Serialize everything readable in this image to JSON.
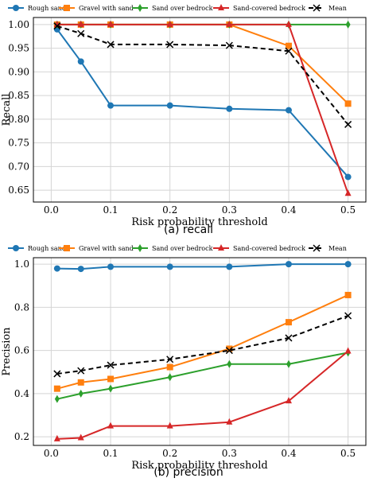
{
  "captions": {
    "a": "(a)  recall",
    "b": "(b)  precision"
  },
  "colors": {
    "Rough sand": "#1f77b4",
    "Gravel with sand": "#ff7f0e",
    "Sand over bedrock": "#2ca02c",
    "Sand-covered bedrock": "#d62728",
    "Mean": "#000000"
  },
  "chart_data": [
    {
      "type": "line",
      "title": "",
      "xlabel": "Risk probability threshold",
      "ylabel": "Recall",
      "x": [
        0.01,
        0.05,
        0.1,
        0.2,
        0.3,
        0.4,
        0.5
      ],
      "xlim": [
        -0.03,
        0.53
      ],
      "ylim": [
        0.625,
        1.015
      ],
      "xticks": [
        0.0,
        0.1,
        0.2,
        0.3,
        0.4,
        0.5
      ],
      "xtick_labels": [
        "0.0",
        "0.1",
        "0.2",
        "0.3",
        "0.4",
        "0.5"
      ],
      "yticks": [
        0.65,
        0.7,
        0.75,
        0.8,
        0.85,
        0.9,
        0.95,
        1.0
      ],
      "ytick_labels": [
        "0.65",
        "0.70",
        "0.75",
        "0.80",
        "0.85",
        "0.90",
        "0.95",
        "1.00"
      ],
      "grid": true,
      "legend_position": "top",
      "series": [
        {
          "name": "Rough sand",
          "marker": "circle",
          "values": [
            0.99,
            0.922,
            0.829,
            0.829,
            0.822,
            0.819,
            0.678
          ]
        },
        {
          "name": "Gravel with sand",
          "marker": "square",
          "values": [
            1.0,
            1.0,
            1.0,
            1.0,
            1.0,
            0.955,
            0.833
          ]
        },
        {
          "name": "Sand over bedrock",
          "marker": "diamond",
          "values": [
            1.0,
            1.0,
            1.0,
            1.0,
            1.0,
            1.0,
            1.0
          ]
        },
        {
          "name": "Sand-covered bedrock",
          "marker": "triangle",
          "values": [
            1.0,
            1.0,
            1.0,
            1.0,
            1.0,
            1.0,
            0.643
          ]
        },
        {
          "name": "Mean",
          "marker": "x",
          "dashed": true,
          "values": [
            0.997,
            0.981,
            0.958,
            0.958,
            0.956,
            0.944,
            0.789
          ]
        }
      ]
    },
    {
      "type": "line",
      "title": "",
      "xlabel": "Risk probability threshold",
      "ylabel": "Precision",
      "x": [
        0.01,
        0.05,
        0.1,
        0.2,
        0.3,
        0.4,
        0.5
      ],
      "xlim": [
        -0.03,
        0.53
      ],
      "ylim": [
        0.16,
        1.03
      ],
      "xticks": [
        0.0,
        0.1,
        0.2,
        0.3,
        0.4,
        0.5
      ],
      "xtick_labels": [
        "0.0",
        "0.1",
        "0.2",
        "0.3",
        "0.4",
        "0.5"
      ],
      "yticks": [
        0.2,
        0.4,
        0.6,
        0.8,
        1.0
      ],
      "ytick_labels": [
        "0.2",
        "0.4",
        "0.6",
        "0.8",
        "1.0"
      ],
      "grid": true,
      "legend_position": "top",
      "series": [
        {
          "name": "Rough sand",
          "marker": "circle",
          "values": [
            0.98,
            0.978,
            0.988,
            0.988,
            0.988,
            1.0,
            1.0
          ]
        },
        {
          "name": "Gravel with sand",
          "marker": "square",
          "values": [
            0.423,
            0.452,
            0.468,
            0.523,
            0.608,
            0.731,
            0.857
          ]
        },
        {
          "name": "Sand over bedrock",
          "marker": "diamond",
          "values": [
            0.375,
            0.4,
            0.423,
            0.476,
            0.537,
            0.537,
            0.59
          ]
        },
        {
          "name": "Sand-covered bedrock",
          "marker": "triangle",
          "values": [
            0.19,
            0.195,
            0.25,
            0.25,
            0.268,
            0.366,
            0.597
          ]
        },
        {
          "name": "Mean",
          "marker": "x",
          "dashed": true,
          "values": [
            0.492,
            0.506,
            0.532,
            0.559,
            0.6,
            0.658,
            0.761
          ]
        }
      ]
    }
  ]
}
